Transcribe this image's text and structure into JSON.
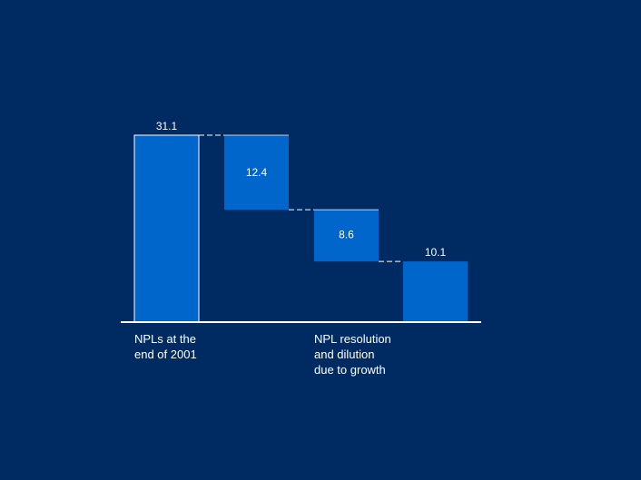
{
  "chart_data": {
    "type": "waterfall",
    "title": "",
    "xlabel": "",
    "ylabel": "",
    "ylim": [
      0,
      31.1
    ],
    "bars": [
      {
        "name": "start",
        "kind": "total",
        "value": 31.1,
        "label": "31.1"
      },
      {
        "name": "decrease-1",
        "kind": "decrease",
        "value": 12.4,
        "label": "12.4"
      },
      {
        "name": "decrease-2",
        "kind": "decrease",
        "value": 8.6,
        "label": "8.6"
      },
      {
        "name": "end",
        "kind": "total",
        "value": 10.1,
        "label": "10.1"
      }
    ],
    "category_labels": [
      {
        "text": "NPLs at the\nend of 2001"
      },
      {
        "text": "NPL resolution\nand dilution\ndue to growth"
      }
    ],
    "colors": {
      "background": "#002b62",
      "total_bar": "#0066cc",
      "decrease_bar": "#0066cc",
      "outline": "#ffffff",
      "connector": "#ffffff"
    }
  }
}
